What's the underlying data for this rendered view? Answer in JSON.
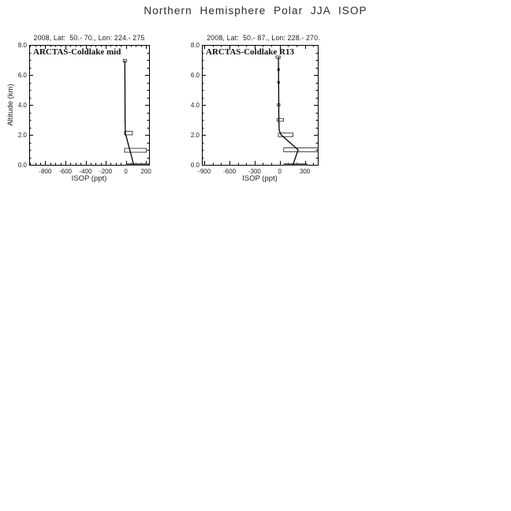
{
  "title": "Northern Hemisphere Polar JJA ISOP",
  "colors": {
    "background": "#ffffff",
    "axis": "#000000",
    "text": "#222222",
    "profile_line": "#000000",
    "box_stroke": "#333333",
    "surface_bar": "#474747"
  },
  "chart_data": [
    {
      "type": "line",
      "panel": "left",
      "header": "2008, Lat:  50.- 70., Lon: 224.- 275",
      "label": "ARCTAS-Coldlake mid",
      "xlabel": "ISOP (ppt)",
      "ylabel": "Altitude (km)",
      "xlim": [
        -960,
        230
      ],
      "ylim": [
        0,
        8
      ],
      "xticks": [
        -800,
        -600,
        -400,
        -200,
        0,
        200
      ],
      "xminor_step": 50,
      "yticks": [
        0,
        2,
        4,
        6,
        8
      ],
      "yminor_step": 0.5,
      "grid": false,
      "model_profile": [
        [
          -10,
          6.95
        ],
        [
          -9,
          5.0
        ],
        [
          -8,
          3.0
        ],
        [
          -5,
          2.1
        ],
        [
          78,
          0.0
        ]
      ],
      "obs_boxes": [
        {
          "x_min": -26,
          "x_max": 8,
          "alt": 6.95,
          "half_h": 0.09
        },
        {
          "x_min": -13,
          "x_max": 65,
          "alt": 2.12,
          "half_h": 0.12
        },
        {
          "x_min": -13,
          "x_max": 202,
          "alt": 0.97,
          "half_h": 0.13
        }
      ],
      "surface_bar": {
        "x_min": 0,
        "x_max": 230,
        "alt": 0.0
      }
    },
    {
      "type": "line",
      "panel": "right",
      "header": "2008, Lat:  50.- 87., Lon: 228.- 270.",
      "label": "ARCTAS-Coldlake R13",
      "xlabel": "ISOP (ppt)",
      "ylabel": "Altitude (km)",
      "xlim": [
        -930,
        455
      ],
      "ylim": [
        0,
        8
      ],
      "xticks": [
        -900,
        -600,
        -300,
        0,
        300
      ],
      "xminor_step": 100,
      "yticks": [
        0,
        2,
        4,
        6,
        8
      ],
      "yminor_step": 0.5,
      "grid": false,
      "model_profile": [
        [
          -15,
          7.2
        ],
        [
          -12,
          5.0
        ],
        [
          -10,
          3.0
        ],
        [
          -6,
          2.3
        ],
        [
          16,
          2.0
        ],
        [
          220,
          1.0
        ],
        [
          158,
          0.0
        ]
      ],
      "obs_boxes": [
        {
          "x_min": -45,
          "x_max": 5,
          "alt": 7.18,
          "half_h": 0.08
        },
        {
          "x_min": -25,
          "x_max": -3,
          "alt": 6.35,
          "half_h": 0.06
        },
        {
          "x_min": -25,
          "x_max": -3,
          "alt": 5.5,
          "half_h": 0.06
        },
        {
          "x_min": -28,
          "x_max": 3,
          "alt": 4.0,
          "half_h": 0.07
        },
        {
          "x_min": -30,
          "x_max": 45,
          "alt": 3.0,
          "half_h": 0.09
        },
        {
          "x_min": -16,
          "x_max": 158,
          "alt": 2.0,
          "half_h": 0.12
        },
        {
          "x_min": 47,
          "x_max": 455,
          "alt": 1.0,
          "half_h": 0.13
        }
      ],
      "surface_bar": {
        "x_min": 47,
        "x_max": 331,
        "alt": 0.0
      }
    }
  ]
}
